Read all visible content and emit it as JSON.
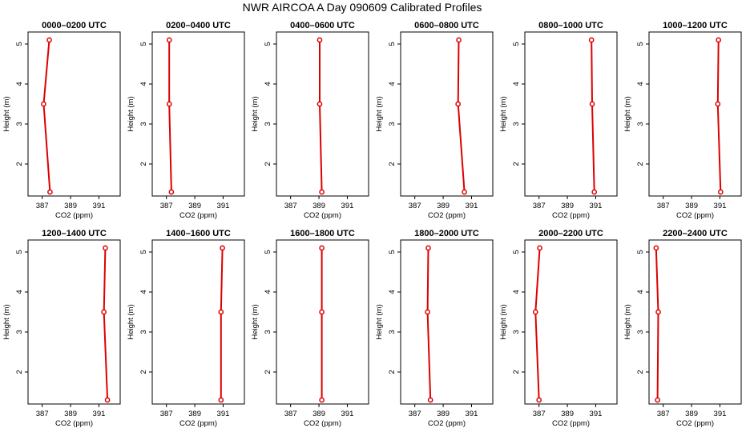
{
  "figure_title": "NWR AIRCOA A  Day 090609  Calibrated Profiles",
  "colors": {
    "series": "#dd0000",
    "axis": "#000000"
  },
  "chart_data": [
    {
      "type": "line",
      "title": "0000–0200 UTC",
      "xlabel": "CO2 (ppm)",
      "ylabel": "Height (m)",
      "xlim": [
        386,
        392.5
      ],
      "ylim": [
        1.2,
        5.3
      ],
      "xticks": [
        387,
        389,
        391
      ],
      "yticks": [
        2,
        3,
        4,
        5
      ],
      "x": [
        387.55,
        387.1,
        387.5
      ],
      "y": [
        1.3,
        3.5,
        5.1
      ]
    },
    {
      "type": "line",
      "title": "0200–0400 UTC",
      "xlabel": "CO2 (ppm)",
      "ylabel": "Height (m)",
      "xlim": [
        386,
        392.5
      ],
      "ylim": [
        1.2,
        5.3
      ],
      "xticks": [
        387,
        389,
        391
      ],
      "yticks": [
        2,
        3,
        4,
        5
      ],
      "x": [
        387.35,
        387.2,
        387.2
      ],
      "y": [
        1.3,
        3.5,
        5.1
      ]
    },
    {
      "type": "line",
      "title": "0400–0600 UTC",
      "xlabel": "CO2 (ppm)",
      "ylabel": "Height (m)",
      "xlim": [
        386,
        392.5
      ],
      "ylim": [
        1.2,
        5.3
      ],
      "xticks": [
        387,
        389,
        391
      ],
      "yticks": [
        2,
        3,
        4,
        5
      ],
      "x": [
        389.2,
        389.05,
        389.05
      ],
      "y": [
        1.3,
        3.5,
        5.1
      ]
    },
    {
      "type": "line",
      "title": "0600–0800 UTC",
      "xlabel": "CO2 (ppm)",
      "ylabel": "Height (m)",
      "xlim": [
        386,
        392.5
      ],
      "ylim": [
        1.2,
        5.3
      ],
      "xticks": [
        387,
        389,
        391
      ],
      "yticks": [
        2,
        3,
        4,
        5
      ],
      "x": [
        390.5,
        390.05,
        390.1
      ],
      "y": [
        1.3,
        3.5,
        5.1
      ]
    },
    {
      "type": "line",
      "title": "0800–1000 UTC",
      "xlabel": "CO2 (ppm)",
      "ylabel": "Height (m)",
      "xlim": [
        386,
        392.5
      ],
      "ylim": [
        1.2,
        5.3
      ],
      "xticks": [
        387,
        389,
        391
      ],
      "yticks": [
        2,
        3,
        4,
        5
      ],
      "x": [
        390.9,
        390.75,
        390.7
      ],
      "y": [
        1.3,
        3.5,
        5.1
      ]
    },
    {
      "type": "line",
      "title": "1000–1200 UTC",
      "xlabel": "CO2 (ppm)",
      "ylabel": "Height (m)",
      "xlim": [
        386,
        392.5
      ],
      "ylim": [
        1.2,
        5.3
      ],
      "xticks": [
        387,
        389,
        391
      ],
      "yticks": [
        2,
        3,
        4,
        5
      ],
      "x": [
        391.05,
        390.85,
        390.9
      ],
      "y": [
        1.3,
        3.5,
        5.1
      ]
    },
    {
      "type": "line",
      "title": "1200–1400 UTC",
      "xlabel": "CO2 (ppm)",
      "ylabel": "Height (m)",
      "xlim": [
        386,
        392.5
      ],
      "ylim": [
        1.2,
        5.3
      ],
      "xticks": [
        387,
        389,
        391
      ],
      "yticks": [
        2,
        3,
        4,
        5
      ],
      "x": [
        391.6,
        391.35,
        391.45
      ],
      "y": [
        1.3,
        3.5,
        5.1
      ]
    },
    {
      "type": "line",
      "title": "1400–1600 UTC",
      "xlabel": "CO2 (ppm)",
      "ylabel": "Height (m)",
      "xlim": [
        386,
        392.5
      ],
      "ylim": [
        1.2,
        5.3
      ],
      "xticks": [
        387,
        389,
        391
      ],
      "yticks": [
        2,
        3,
        4,
        5
      ],
      "x": [
        390.85,
        390.85,
        390.95
      ],
      "y": [
        1.3,
        3.5,
        5.1
      ]
    },
    {
      "type": "line",
      "title": "1600–1800 UTC",
      "xlabel": "CO2 (ppm)",
      "ylabel": "Height (m)",
      "xlim": [
        386,
        392.5
      ],
      "ylim": [
        1.2,
        5.3
      ],
      "xticks": [
        387,
        389,
        391
      ],
      "yticks": [
        2,
        3,
        4,
        5
      ],
      "x": [
        389.2,
        389.2,
        389.2
      ],
      "y": [
        1.3,
        3.5,
        5.1
      ]
    },
    {
      "type": "line",
      "title": "1800–2000 UTC",
      "xlabel": "CO2 (ppm)",
      "ylabel": "Height (m)",
      "xlim": [
        386,
        392.5
      ],
      "ylim": [
        1.2,
        5.3
      ],
      "xticks": [
        387,
        389,
        391
      ],
      "yticks": [
        2,
        3,
        4,
        5
      ],
      "x": [
        388.1,
        387.9,
        387.95
      ],
      "y": [
        1.3,
        3.5,
        5.1
      ]
    },
    {
      "type": "line",
      "title": "2000–2200 UTC",
      "xlabel": "CO2 (ppm)",
      "ylabel": "Height (m)",
      "xlim": [
        386,
        392.5
      ],
      "ylim": [
        1.2,
        5.3
      ],
      "xticks": [
        387,
        389,
        391
      ],
      "yticks": [
        2,
        3,
        4,
        5
      ],
      "x": [
        387.0,
        386.75,
        387.05
      ],
      "y": [
        1.3,
        3.5,
        5.1
      ]
    },
    {
      "type": "line",
      "title": "2200–2400 UTC",
      "xlabel": "CO2 (ppm)",
      "ylabel": "Height (m)",
      "xlim": [
        386,
        392.5
      ],
      "ylim": [
        1.2,
        5.3
      ],
      "xticks": [
        387,
        389,
        391
      ],
      "yticks": [
        2,
        3,
        4,
        5
      ],
      "x": [
        386.6,
        386.65,
        386.5
      ],
      "y": [
        1.3,
        3.5,
        5.1
      ]
    }
  ]
}
